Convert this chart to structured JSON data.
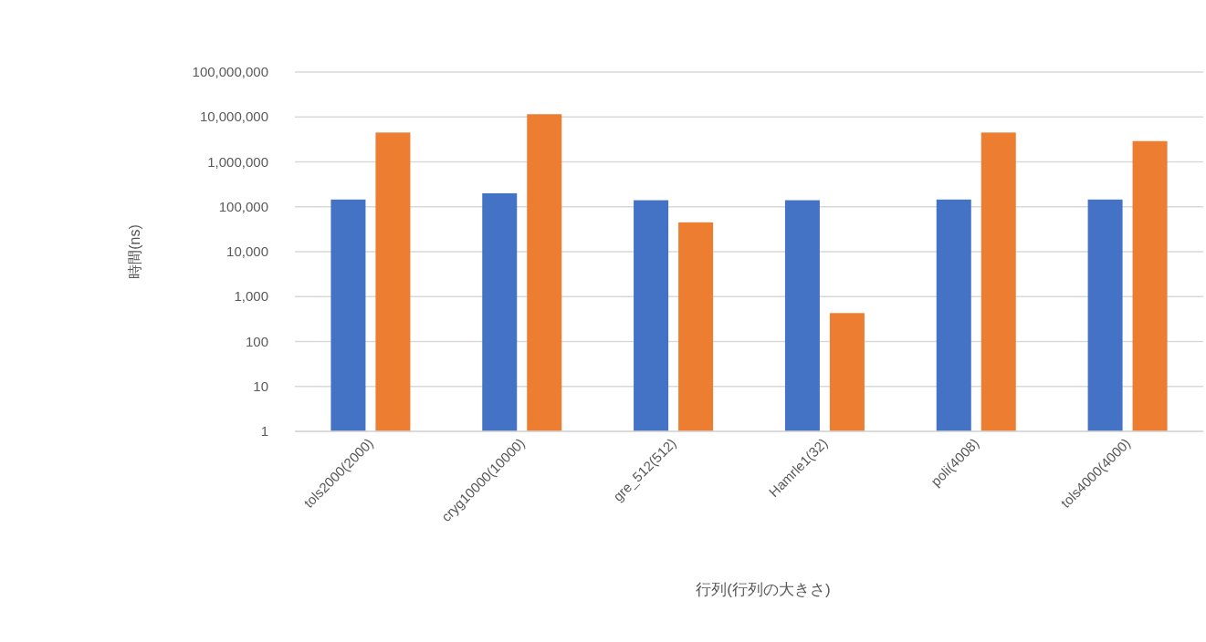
{
  "chart_data": {
    "type": "bar",
    "xlabel": "行列(行列の大きさ)",
    "ylabel": "時間(ns)",
    "categories": [
      "tols2000(2000)",
      "cryg10000(10000)",
      "gre_512(512)",
      "Hamrle1(32)",
      "poli(4008)",
      "tols4000(4000)"
    ],
    "series": [
      {
        "color": "#4472c4",
        "values": [
          145000,
          200000,
          140000,
          140000,
          145000,
          145000
        ]
      },
      {
        "color": "#ed7d31",
        "values": [
          4500000,
          11500000,
          45000,
          430,
          4500000,
          2900000
        ]
      }
    ],
    "log": "y",
    "ylim": [
      1,
      100000000
    ],
    "yticks": [
      {
        "value": 1,
        "label": "1"
      },
      {
        "value": 10,
        "label": "10"
      },
      {
        "value": 100,
        "label": "100"
      },
      {
        "value": 1000,
        "label": "1,000"
      },
      {
        "value": 10000,
        "label": "10,000"
      },
      {
        "value": 100000,
        "label": "100,000"
      },
      {
        "value": 1000000,
        "label": "1,000,000"
      },
      {
        "value": 10000000,
        "label": "10,000,000"
      },
      {
        "value": 100000000,
        "label": "100,000,000"
      }
    ],
    "grid": "y"
  }
}
